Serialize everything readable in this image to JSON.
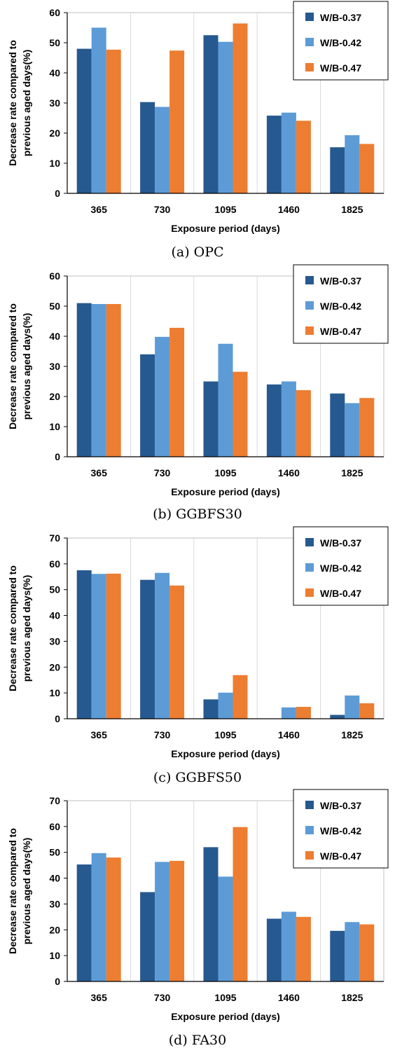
{
  "colors": {
    "W/B-0.37": "#26598f",
    "W/B-0.42": "#5c9bd6",
    "W/B-0.47": "#ed7d31"
  },
  "chart_data": [
    {
      "type": "bar",
      "caption": "(a) OPC",
      "categories": [
        "365",
        "730",
        "1095",
        "1460",
        "1825"
      ],
      "xlabel": "Exposure period (days)",
      "ylabel_lines": [
        "Decrease rate compared to",
        "previous aged days(%)"
      ],
      "ylim": [
        0,
        60
      ],
      "yticks": [
        0,
        10,
        20,
        30,
        40,
        50,
        60
      ],
      "grid": "vertical gridlines between categories",
      "legend_position": "top-right",
      "series": [
        {
          "name": "W/B-0.37",
          "values": [
            48,
            30.3,
            52.5,
            25.8,
            15.3
          ]
        },
        {
          "name": "W/B-0.42",
          "values": [
            55,
            28.7,
            50.3,
            26.8,
            19.3
          ]
        },
        {
          "name": "W/B-0.47",
          "values": [
            47.7,
            47.4,
            56.4,
            24.1,
            16.4
          ]
        }
      ]
    },
    {
      "type": "bar",
      "caption": "(b) GGBFS30",
      "categories": [
        "365",
        "730",
        "1095",
        "1460",
        "1825"
      ],
      "xlabel": "Exposure period (days)",
      "ylabel_lines": [
        "Decrease rate compared to",
        "previous aged days(%)"
      ],
      "ylim": [
        0,
        60
      ],
      "yticks": [
        0,
        10,
        20,
        30,
        40,
        50,
        60
      ],
      "grid": "vertical gridlines between categories",
      "legend_position": "top-right",
      "series": [
        {
          "name": "W/B-0.37",
          "values": [
            51,
            34,
            25,
            24,
            21
          ]
        },
        {
          "name": "W/B-0.42",
          "values": [
            50.7,
            39.8,
            37.5,
            25,
            17.8
          ]
        },
        {
          "name": "W/B-0.47",
          "values": [
            50.7,
            42.8,
            28.2,
            22.1,
            19.5
          ]
        }
      ]
    },
    {
      "type": "bar",
      "caption": "(c) GGBFS50",
      "categories": [
        "365",
        "730",
        "1095",
        "1460",
        "1825"
      ],
      "xlabel": "Exposure period (days)",
      "ylabel_lines": [
        "Decrease rate compared to",
        "previous aged days(%)"
      ],
      "ylim": [
        0,
        70
      ],
      "yticks": [
        0,
        10,
        20,
        30,
        40,
        50,
        60,
        70
      ],
      "grid": "vertical gridlines between categories",
      "legend_position": "top-right",
      "series": [
        {
          "name": "W/B-0.37",
          "values": [
            57.5,
            53.8,
            7.5,
            0,
            1.5
          ]
        },
        {
          "name": "W/B-0.42",
          "values": [
            56.1,
            56.5,
            10.1,
            4.4,
            9
          ]
        },
        {
          "name": "W/B-0.47",
          "values": [
            56.2,
            51.6,
            16.9,
            4.6,
            6
          ]
        }
      ]
    },
    {
      "type": "bar",
      "caption": "(d) FA30",
      "categories": [
        "365",
        "730",
        "1095",
        "1460",
        "1825"
      ],
      "xlabel": "Exposure period (days)",
      "ylabel_lines": [
        "Decrease rate compared to",
        "previous aged days(%)"
      ],
      "ylim": [
        0,
        70
      ],
      "yticks": [
        0,
        10,
        20,
        30,
        40,
        50,
        60,
        70
      ],
      "grid": "vertical gridlines between categories",
      "legend_position": "top-right",
      "series": [
        {
          "name": "W/B-0.37",
          "values": [
            45.3,
            34.6,
            52,
            24.3,
            19.6
          ]
        },
        {
          "name": "W/B-0.42",
          "values": [
            49.7,
            46.3,
            40.6,
            27,
            23
          ]
        },
        {
          "name": "W/B-0.47",
          "values": [
            48,
            46.7,
            59.8,
            25,
            22.1
          ]
        }
      ]
    }
  ]
}
